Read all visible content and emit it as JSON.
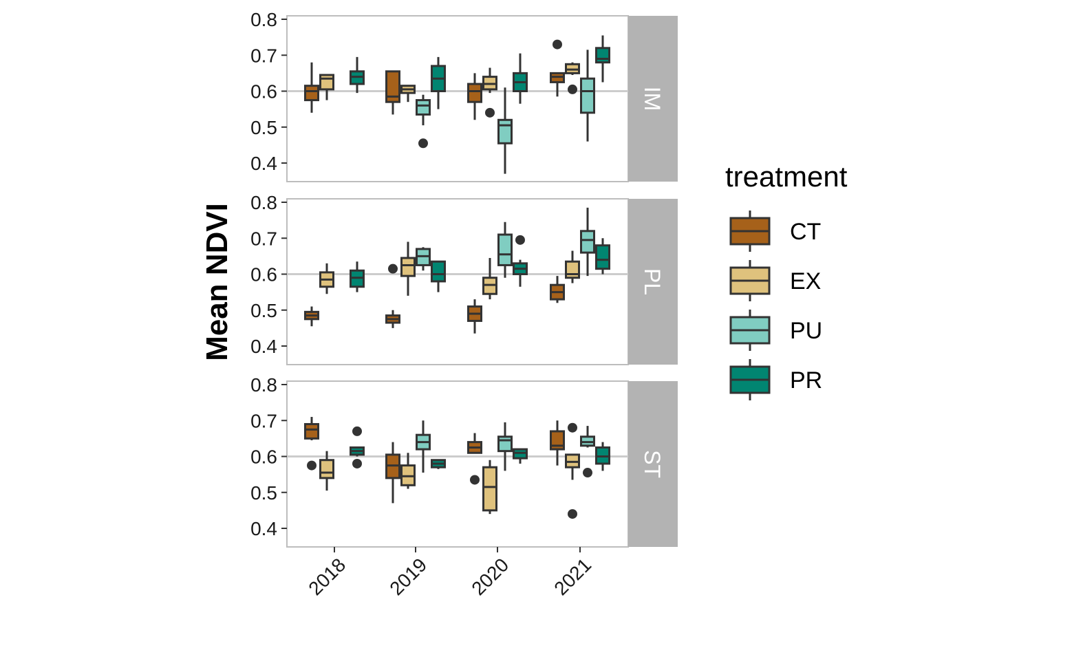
{
  "chart_data": {
    "type": "boxplot",
    "ylabel": "Mean NDVI",
    "xlabel": "",
    "ylim": [
      0.35,
      0.81
    ],
    "yticks": [
      0.4,
      0.5,
      0.6,
      0.7,
      0.8
    ],
    "ytick_labels": [
      "0.4",
      "0.5",
      "0.6",
      "0.7",
      "0.8"
    ],
    "reference_line": 0.6,
    "categories": [
      "2018",
      "2019",
      "2020",
      "2021"
    ],
    "legend": {
      "title": "treatment",
      "position": "right",
      "entries": [
        {
          "name": "CT",
          "color": "#a6611a"
        },
        {
          "name": "EX",
          "color": "#dfc27d"
        },
        {
          "name": "PU",
          "color": "#80cdc1"
        },
        {
          "name": "PR",
          "color": "#018571"
        }
      ]
    },
    "facets": [
      {
        "label": "IM",
        "boxes": {
          "2018": {
            "CT": {
              "min": 0.54,
              "q1": 0.575,
              "median": 0.6,
              "q3": 0.615,
              "max": 0.68,
              "outliers": []
            },
            "EX": {
              "min": 0.575,
              "q1": 0.605,
              "median": 0.635,
              "q3": 0.645,
              "max": 0.645,
              "outliers": []
            },
            "PR": {
              "min": 0.595,
              "q1": 0.62,
              "median": 0.64,
              "q3": 0.655,
              "max": 0.695,
              "outliers": []
            }
          },
          "2019": {
            "CT": {
              "min": 0.535,
              "q1": 0.57,
              "median": 0.585,
              "q3": 0.655,
              "max": 0.655,
              "outliers": []
            },
            "EX": {
              "min": 0.57,
              "q1": 0.595,
              "median": 0.605,
              "q3": 0.615,
              "max": 0.615,
              "outliers": []
            },
            "PU": {
              "min": 0.505,
              "q1": 0.535,
              "median": 0.56,
              "q3": 0.575,
              "max": 0.59,
              "outliers": [
                0.455
              ]
            },
            "PR": {
              "min": 0.55,
              "q1": 0.6,
              "median": 0.635,
              "q3": 0.67,
              "max": 0.695,
              "outliers": []
            }
          },
          "2020": {
            "CT": {
              "min": 0.52,
              "q1": 0.57,
              "median": 0.6,
              "q3": 0.62,
              "max": 0.65,
              "outliers": []
            },
            "EX": {
              "min": 0.595,
              "q1": 0.605,
              "median": 0.62,
              "q3": 0.64,
              "max": 0.665,
              "outliers": [
                0.54
              ]
            },
            "PU": {
              "min": 0.37,
              "q1": 0.455,
              "median": 0.505,
              "q3": 0.52,
              "max": 0.61,
              "outliers": []
            },
            "PR": {
              "min": 0.565,
              "q1": 0.6,
              "median": 0.625,
              "q3": 0.65,
              "max": 0.705,
              "outliers": []
            }
          },
          "2021": {
            "CT": {
              "min": 0.585,
              "q1": 0.625,
              "median": 0.64,
              "q3": 0.65,
              "max": 0.65,
              "outliers": [
                0.73
              ]
            },
            "EX": {
              "min": 0.645,
              "q1": 0.65,
              "median": 0.66,
              "q3": 0.675,
              "max": 0.68,
              "outliers": [
                0.605
              ]
            },
            "PU": {
              "min": 0.46,
              "q1": 0.54,
              "median": 0.6,
              "q3": 0.635,
              "max": 0.715,
              "outliers": []
            },
            "PR": {
              "min": 0.625,
              "q1": 0.68,
              "median": 0.69,
              "q3": 0.72,
              "max": 0.755,
              "outliers": []
            }
          }
        }
      },
      {
        "label": "PL",
        "boxes": {
          "2018": {
            "CT": {
              "min": 0.455,
              "q1": 0.475,
              "median": 0.485,
              "q3": 0.495,
              "max": 0.51,
              "outliers": []
            },
            "EX": {
              "min": 0.545,
              "q1": 0.565,
              "median": 0.585,
              "q3": 0.605,
              "max": 0.63,
              "outliers": []
            },
            "PR": {
              "min": 0.55,
              "q1": 0.565,
              "median": 0.59,
              "q3": 0.61,
              "max": 0.635,
              "outliers": []
            }
          },
          "2019": {
            "CT": {
              "min": 0.45,
              "q1": 0.465,
              "median": 0.475,
              "q3": 0.485,
              "max": 0.5,
              "outliers": [
                0.615
              ]
            },
            "EX": {
              "min": 0.54,
              "q1": 0.595,
              "median": 0.625,
              "q3": 0.645,
              "max": 0.69,
              "outliers": []
            },
            "PU": {
              "min": 0.61,
              "q1": 0.625,
              "median": 0.65,
              "q3": 0.67,
              "max": 0.675,
              "outliers": []
            },
            "PR": {
              "min": 0.55,
              "q1": 0.58,
              "median": 0.6,
              "q3": 0.635,
              "max": 0.635,
              "outliers": []
            }
          },
          "2020": {
            "CT": {
              "min": 0.435,
              "q1": 0.47,
              "median": 0.49,
              "q3": 0.51,
              "max": 0.53,
              "outliers": []
            },
            "EX": {
              "min": 0.53,
              "q1": 0.545,
              "median": 0.57,
              "q3": 0.59,
              "max": 0.645,
              "outliers": []
            },
            "PU": {
              "min": 0.59,
              "q1": 0.625,
              "median": 0.655,
              "q3": 0.71,
              "max": 0.745,
              "outliers": []
            },
            "PR": {
              "min": 0.565,
              "q1": 0.6,
              "median": 0.615,
              "q3": 0.63,
              "max": 0.64,
              "outliers": [
                0.695
              ]
            }
          },
          "2021": {
            "CT": {
              "min": 0.52,
              "q1": 0.53,
              "median": 0.55,
              "q3": 0.57,
              "max": 0.595,
              "outliers": []
            },
            "EX": {
              "min": 0.575,
              "q1": 0.59,
              "median": 0.6,
              "q3": 0.635,
              "max": 0.665,
              "outliers": []
            },
            "PU": {
              "min": 0.595,
              "q1": 0.66,
              "median": 0.695,
              "q3": 0.72,
              "max": 0.785,
              "outliers": []
            },
            "PR": {
              "min": 0.6,
              "q1": 0.615,
              "median": 0.64,
              "q3": 0.68,
              "max": 0.7,
              "outliers": []
            }
          }
        }
      },
      {
        "label": "ST",
        "boxes": {
          "2018": {
            "CT": {
              "min": 0.645,
              "q1": 0.65,
              "median": 0.675,
              "q3": 0.69,
              "max": 0.71,
              "outliers": [
                0.575
              ]
            },
            "EX": {
              "min": 0.505,
              "q1": 0.54,
              "median": 0.555,
              "q3": 0.59,
              "max": 0.615,
              "outliers": []
            },
            "PR": {
              "min": 0.6,
              "q1": 0.605,
              "median": 0.615,
              "q3": 0.625,
              "max": 0.625,
              "outliers": [
                0.67,
                0.58
              ]
            }
          },
          "2019": {
            "CT": {
              "min": 0.47,
              "q1": 0.54,
              "median": 0.575,
              "q3": 0.605,
              "max": 0.64,
              "outliers": []
            },
            "EX": {
              "min": 0.51,
              "q1": 0.52,
              "median": 0.545,
              "q3": 0.575,
              "max": 0.61,
              "outliers": []
            },
            "PU": {
              "min": 0.555,
              "q1": 0.62,
              "median": 0.64,
              "q3": 0.66,
              "max": 0.7,
              "outliers": []
            },
            "PR": {
              "min": 0.565,
              "q1": 0.57,
              "median": 0.58,
              "q3": 0.59,
              "max": 0.59,
              "outliers": []
            }
          },
          "2020": {
            "CT": {
              "min": 0.61,
              "q1": 0.61,
              "median": 0.625,
              "q3": 0.64,
              "max": 0.665,
              "outliers": [
                0.535
              ]
            },
            "EX": {
              "min": 0.44,
              "q1": 0.45,
              "median": 0.515,
              "q3": 0.57,
              "max": 0.59,
              "outliers": []
            },
            "PU": {
              "min": 0.56,
              "q1": 0.615,
              "median": 0.645,
              "q3": 0.655,
              "max": 0.695,
              "outliers": []
            },
            "PR": {
              "min": 0.58,
              "q1": 0.595,
              "median": 0.61,
              "q3": 0.62,
              "max": 0.62,
              "outliers": []
            }
          },
          "2021": {
            "CT": {
              "min": 0.575,
              "q1": 0.62,
              "median": 0.63,
              "q3": 0.67,
              "max": 0.7,
              "outliers": []
            },
            "EX": {
              "min": 0.535,
              "q1": 0.57,
              "median": 0.585,
              "q3": 0.605,
              "max": 0.605,
              "outliers": [
                0.68,
                0.44
              ]
            },
            "PU": {
              "min": 0.625,
              "q1": 0.63,
              "median": 0.64,
              "q3": 0.655,
              "max": 0.685,
              "outliers": [
                0.555
              ]
            },
            "PR": {
              "min": 0.56,
              "q1": 0.58,
              "median": 0.6,
              "q3": 0.625,
              "max": 0.64,
              "outliers": []
            }
          }
        }
      }
    ]
  }
}
